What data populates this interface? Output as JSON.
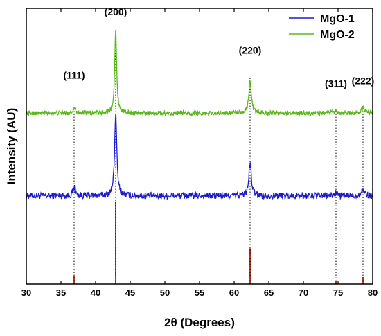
{
  "chart_data": {
    "type": "line",
    "xlabel": "2θ (Degrees)",
    "ylabel": "Intensity (AU)",
    "xlim": [
      30,
      80
    ],
    "x_ticks": [
      30,
      35,
      40,
      45,
      50,
      55,
      60,
      65,
      70,
      75,
      80
    ],
    "legend_position": "top-right",
    "series": [
      {
        "name": "MgO-1",
        "color": "#1c1ccc",
        "baseline_level": 0.32,
        "noise_amplitude": 0.012,
        "peaks": [
          {
            "x": 36.9,
            "height": 0.03,
            "width": 0.25
          },
          {
            "x": 42.9,
            "height": 0.3,
            "width": 0.22
          },
          {
            "x": 62.3,
            "height": 0.12,
            "width": 0.25
          },
          {
            "x": 74.7,
            "height": 0.01,
            "width": 0.3
          },
          {
            "x": 78.6,
            "height": 0.025,
            "width": 0.3
          }
        ]
      },
      {
        "name": "MgO-2",
        "color": "#5cb81c",
        "baseline_level": 0.62,
        "noise_amplitude": 0.008,
        "peaks": [
          {
            "x": 36.9,
            "height": 0.02,
            "width": 0.25
          },
          {
            "x": 42.9,
            "height": 0.3,
            "width": 0.2
          },
          {
            "x": 62.3,
            "height": 0.12,
            "width": 0.25
          },
          {
            "x": 74.7,
            "height": 0.01,
            "width": 0.3
          },
          {
            "x": 78.6,
            "height": 0.02,
            "width": 0.3
          }
        ]
      }
    ],
    "reference_lines": {
      "color": "#b5371e",
      "values": [
        {
          "x": 36.9,
          "height": 0.03
        },
        {
          "x": 42.9,
          "height": 0.3
        },
        {
          "x": 62.3,
          "height": 0.13
        },
        {
          "x": 74.7,
          "height": 0.01
        },
        {
          "x": 78.6,
          "height": 0.025
        }
      ]
    },
    "peak_labels": [
      {
        "text": "(111)",
        "x": 36.9,
        "y": 0.745
      },
      {
        "text": "(200)",
        "x": 42.9,
        "y": 0.975
      },
      {
        "text": "(220)",
        "x": 62.3,
        "y": 0.835
      },
      {
        "text": "(311)",
        "x": 74.7,
        "y": 0.715
      },
      {
        "text": "(222)",
        "x": 78.6,
        "y": 0.725
      }
    ],
    "dotted_guides": [
      {
        "x": 36.9,
        "y_top": 0.64
      },
      {
        "x": 42.9,
        "y_top": 0.92
      },
      {
        "x": 62.3,
        "y_top": 0.75
      },
      {
        "x": 74.7,
        "y_top": 0.63
      },
      {
        "x": 78.6,
        "y_top": 0.64
      }
    ]
  }
}
